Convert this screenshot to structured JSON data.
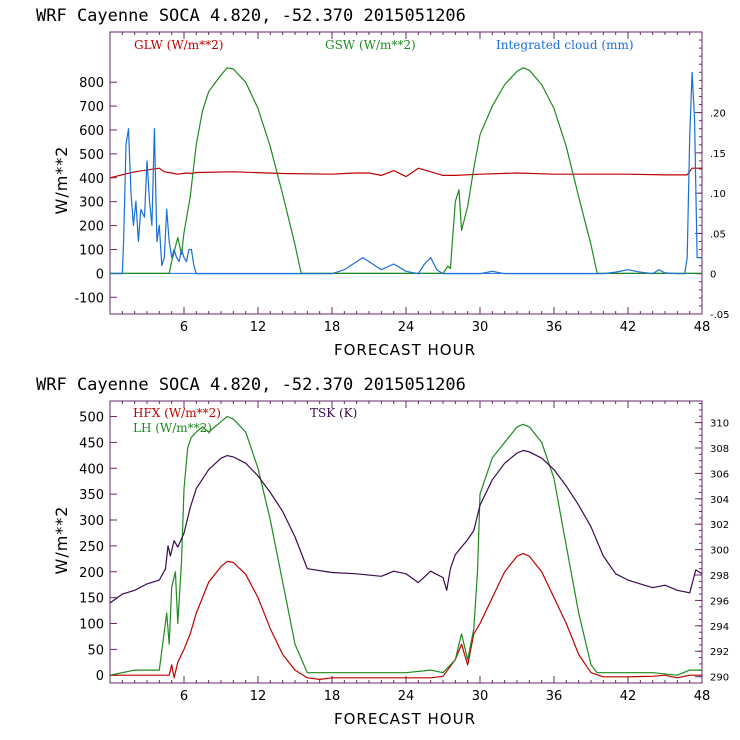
{
  "chart_data": [
    {
      "type": "line",
      "title": "WRF   Cayenne SOCA   4.820, -52.370  2015051206",
      "xlabel": "FORECAST HOUR",
      "ylabel": "W/m**2",
      "xlim": [
        0,
        48
      ],
      "ylim": [
        -170,
        1010
      ],
      "y2lim": [
        -0.05,
        0.3
      ],
      "xticks": [
        "6",
        "12",
        "18",
        "24",
        "30",
        "36",
        "42",
        "48"
      ],
      "yticks": [
        "-100",
        "0",
        "100",
        "200",
        "300",
        "400",
        "500",
        "600",
        "700",
        "800"
      ],
      "y2ticks": [
        "-.05",
        "0",
        ".05",
        ".10",
        ".15",
        ".20"
      ],
      "colors": {
        "glw": "#c00000",
        "gsw": "#1f8a1f",
        "cloud": "#1a6fd6"
      },
      "series": [
        {
          "name": "GLW (W/m**2)",
          "color_key": "glw",
          "axis": "left",
          "x": [
            0,
            2,
            4,
            4.4,
            5.2,
            5.5,
            6.2,
            6.6,
            7,
            10,
            14,
            18,
            19,
            20,
            21,
            22,
            23,
            24,
            25,
            26,
            27,
            28,
            30,
            33,
            36,
            39,
            42,
            45,
            46.8,
            47.2,
            48
          ],
          "y": [
            400,
            425,
            440,
            425,
            418,
            415,
            420,
            418,
            422,
            425,
            418,
            415,
            418,
            420,
            420,
            410,
            430,
            405,
            440,
            425,
            410,
            410,
            415,
            420,
            415,
            415,
            415,
            412,
            412,
            440,
            440
          ]
        },
        {
          "name": "GSW (W/m**2)",
          "color_key": "gsw",
          "axis": "left",
          "x": [
            0,
            4.8,
            5.0,
            5.5,
            5.8,
            6.0,
            6.5,
            7,
            7.5,
            8,
            9,
            9.5,
            10,
            11,
            12,
            13,
            14,
            15,
            15.5,
            16,
            18,
            20,
            24,
            26,
            27,
            27.4,
            27.6,
            28,
            28.3,
            28.5,
            29,
            29.5,
            30,
            31,
            32,
            33,
            33.5,
            34,
            35,
            36,
            37,
            38,
            39,
            39.5,
            40,
            44,
            48
          ],
          "y": [
            0,
            0,
            50,
            150,
            80,
            170,
            320,
            540,
            680,
            760,
            830,
            860,
            855,
            800,
            690,
            530,
            330,
            120,
            0,
            0,
            0,
            0,
            0,
            0,
            0,
            30,
            20,
            300,
            350,
            180,
            280,
            440,
            580,
            700,
            790,
            845,
            860,
            850,
            790,
            690,
            530,
            320,
            120,
            0,
            0,
            0,
            0
          ]
        },
        {
          "name": "Integrated cloud (mm)",
          "color_key": "cloud",
          "axis": "right",
          "x": [
            0,
            1,
            1.1,
            1.3,
            1.5,
            1.7,
            1.9,
            2.1,
            2.3,
            2.5,
            2.8,
            3,
            3.2,
            3.4,
            3.6,
            3.8,
            4.0,
            4.2,
            4.4,
            4.6,
            4.8,
            5.0,
            5.2,
            5.4,
            5.6,
            5.8,
            6,
            6.2,
            6.4,
            6.6,
            6.8,
            7,
            12,
            18,
            19,
            20,
            20.5,
            21,
            22,
            23,
            24,
            25,
            25.5,
            26,
            26.5,
            27,
            30,
            31,
            32,
            36,
            40,
            41,
            42,
            43,
            44,
            44.5,
            45,
            46,
            46.6,
            46.8,
            47,
            47.2,
            47.4,
            47.6,
            48
          ],
          "y": [
            0,
            0,
            0.04,
            0.16,
            0.18,
            0.1,
            0.06,
            0.09,
            0.04,
            0.08,
            0.07,
            0.14,
            0.09,
            0.06,
            0.18,
            0.04,
            0.06,
            0.01,
            0.02,
            0.08,
            0.04,
            0.02,
            0.03,
            0.02,
            0.015,
            0.03,
            0.02,
            0.015,
            0.03,
            0.03,
            0.01,
            0,
            0,
            0,
            0.005,
            0.015,
            0.02,
            0.015,
            0.005,
            0.012,
            0.003,
            0.0,
            0.012,
            0.02,
            0.005,
            0,
            0,
            0.003,
            0,
            0,
            0,
            0.002,
            0.005,
            0.002,
            0.0,
            0.005,
            0.001,
            0,
            0,
            0.02,
            0.17,
            0.25,
            0.19,
            0.02,
            0.02
          ]
        }
      ]
    },
    {
      "type": "line",
      "title": "WRF   Cayenne SOCA   4.820, -52.370  2015051206",
      "xlabel": "FORECAST HOUR",
      "ylabel": "W/m**2",
      "xlim": [
        0,
        48
      ],
      "ylim": [
        -15,
        530
      ],
      "y2lim": [
        289.5,
        311.7
      ],
      "xticks": [
        "6",
        "12",
        "18",
        "24",
        "30",
        "36",
        "42",
        "48"
      ],
      "yticks": [
        "0",
        "50",
        "100",
        "150",
        "200",
        "250",
        "300",
        "350",
        "400",
        "450",
        "500"
      ],
      "y2ticks": [
        "290",
        "292",
        "294",
        "296",
        "298",
        "300",
        "302",
        "304",
        "306",
        "308",
        "310"
      ],
      "colors": {
        "hfx": "#c00000",
        "lh": "#1f8a1f",
        "tsk": "#3a0a50"
      },
      "series": [
        {
          "name": "HFX (W/m**2)",
          "color_key": "hfx",
          "axis": "left",
          "x": [
            0,
            2,
            4.8,
            5.0,
            5.2,
            5.5,
            6.0,
            6.5,
            7,
            8,
            9,
            9.5,
            10,
            11,
            12,
            13,
            14,
            15,
            16,
            17,
            18,
            20,
            24,
            26,
            27,
            28,
            28.5,
            29,
            29.5,
            30,
            31,
            32,
            33,
            33.5,
            34,
            35,
            36,
            37,
            38,
            39,
            40,
            42,
            44,
            45,
            46,
            47,
            48
          ],
          "y": [
            0,
            0,
            0,
            20,
            -5,
            25,
            50,
            80,
            120,
            180,
            210,
            220,
            218,
            195,
            150,
            90,
            40,
            10,
            -5,
            -8,
            -5,
            -5,
            -5,
            -5,
            -2,
            30,
            60,
            20,
            80,
            100,
            150,
            200,
            230,
            235,
            230,
            200,
            150,
            100,
            40,
            5,
            -3,
            -3,
            -2,
            0,
            -5,
            0,
            0
          ]
        },
        {
          "name": "LH (W/m**2)",
          "color_key": "lh",
          "axis": "left",
          "x": [
            0,
            2,
            4,
            4.6,
            4.8,
            5.0,
            5.3,
            5.5,
            5.8,
            6,
            6.3,
            6.6,
            7,
            7.5,
            8,
            9,
            9.5,
            10,
            11,
            12,
            13,
            14,
            15,
            16,
            18,
            24,
            26,
            27,
            28,
            28.5,
            29,
            29.5,
            29.8,
            30,
            31,
            32,
            33,
            33.5,
            34,
            35,
            36,
            37,
            38,
            39,
            39.5,
            40,
            44,
            46,
            47,
            48
          ],
          "y": [
            0,
            10,
            10,
            120,
            60,
            170,
            200,
            100,
            220,
            360,
            440,
            460,
            470,
            480,
            470,
            490,
            500,
            495,
            470,
            400,
            300,
            180,
            60,
            5,
            5,
            5,
            10,
            5,
            30,
            80,
            30,
            90,
            200,
            350,
            420,
            450,
            480,
            485,
            480,
            450,
            380,
            250,
            120,
            20,
            5,
            5,
            5,
            0,
            10,
            10
          ]
        },
        {
          "name": "TSK (K)",
          "color_key": "tsk",
          "axis": "right",
          "x": [
            0,
            1,
            2,
            3,
            4,
            4.5,
            4.7,
            4.9,
            5.2,
            5.5,
            6,
            6.5,
            7,
            8,
            9,
            9.5,
            10,
            11,
            12,
            13,
            14,
            15,
            16,
            18,
            20,
            22,
            23,
            24,
            25,
            26,
            27,
            27.3,
            27.6,
            28,
            29,
            29.5,
            30,
            31,
            32,
            33,
            33.5,
            34,
            35,
            36,
            37,
            38,
            39,
            40,
            41,
            42,
            43,
            44,
            45,
            46,
            47,
            47.5,
            48
          ],
          "y": [
            295.8,
            296.5,
            296.8,
            297.3,
            297.6,
            298.5,
            300.3,
            299.5,
            300.7,
            300.2,
            301.3,
            303.3,
            304.8,
            306.3,
            307.2,
            307.4,
            307.3,
            306.8,
            305.8,
            304.5,
            303,
            301,
            298.5,
            298.2,
            298.1,
            297.9,
            298.3,
            298.1,
            297.4,
            298.3,
            297.8,
            296.8,
            298.5,
            299.6,
            300.8,
            301.5,
            303.5,
            305.5,
            306.8,
            307.6,
            307.8,
            307.7,
            307.2,
            306.3,
            305,
            303.5,
            301.8,
            299.5,
            298.1,
            297.6,
            297.3,
            297.0,
            297.2,
            296.8,
            296.6,
            298.4,
            298.1
          ]
        }
      ]
    }
  ]
}
